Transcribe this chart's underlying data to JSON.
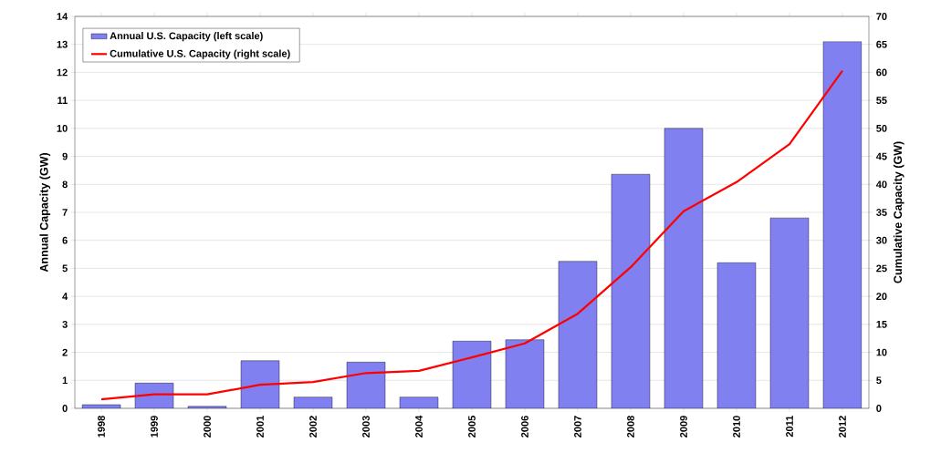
{
  "chart_data": {
    "type": "bar",
    "categories": [
      "1998",
      "1999",
      "2000",
      "2001",
      "2002",
      "2003",
      "2004",
      "2005",
      "2006",
      "2007",
      "2008",
      "2009",
      "2010",
      "2011",
      "2012"
    ],
    "ylabel": "Annual Capacity (GW)",
    "y2label": "Cumulative Capacity (GW)",
    "ylim": [
      0,
      14
    ],
    "yticks": [
      0,
      1,
      2,
      3,
      4,
      5,
      6,
      7,
      8,
      9,
      10,
      11,
      12,
      13,
      14
    ],
    "y2lim": [
      0,
      70
    ],
    "y2ticks": [
      0,
      5,
      10,
      15,
      20,
      25,
      30,
      35,
      40,
      45,
      50,
      55,
      60,
      65,
      70
    ],
    "grid": "y",
    "legend": "top left",
    "series": [
      {
        "name": "Annual U.S. Capacity (left scale)",
        "color": "#8080f0",
        "values": [
          0.13,
          0.9,
          0.07,
          1.7,
          0.4,
          1.65,
          0.4,
          2.4,
          2.45,
          5.25,
          8.36,
          10.0,
          5.2,
          6.8,
          13.1
        ]
      },
      {
        "name": "Cumulative U.S. Capacity (right scale)",
        "type": "line",
        "axis": "y2",
        "color": "#ff0000",
        "values": [
          1.6,
          2.5,
          2.5,
          4.2,
          4.7,
          6.3,
          6.7,
          9.1,
          11.6,
          16.9,
          25.2,
          35.2,
          40.4,
          47.2,
          60.3
        ]
      }
    ]
  }
}
